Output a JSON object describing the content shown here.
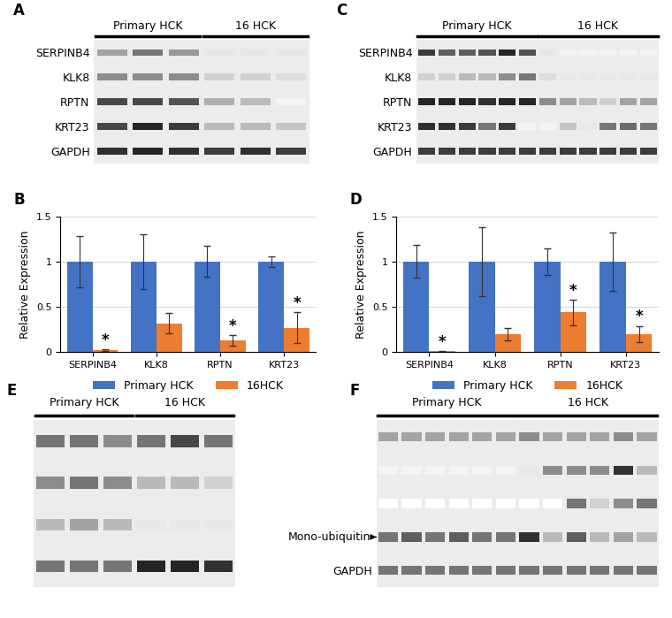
{
  "blots": [
    {
      "panel": "A",
      "groups": [
        {
          "label": "Primary HCK",
          "lanes": 3
        },
        {
          "label": "16 HCK",
          "lanes": 3
        }
      ],
      "rows": [
        {
          "label": "SERPINB4",
          "intensity": [
            0.4,
            0.6,
            0.45,
            0.1,
            0.1,
            0.1
          ]
        },
        {
          "label": "KLK8",
          "intensity": [
            0.5,
            0.5,
            0.5,
            0.2,
            0.2,
            0.15
          ]
        },
        {
          "label": "RPTN",
          "intensity": [
            0.8,
            0.8,
            0.75,
            0.35,
            0.3,
            0.05
          ]
        },
        {
          "label": "KRT23",
          "intensity": [
            0.8,
            0.95,
            0.85,
            0.3,
            0.3,
            0.25
          ]
        },
        {
          "label": "GAPDH",
          "intensity": [
            0.9,
            0.95,
            0.9,
            0.85,
            0.9,
            0.85
          ]
        }
      ]
    },
    {
      "panel": "C",
      "groups": [
        {
          "label": "Primary HCK",
          "lanes": 6
        },
        {
          "label": "16 HCK",
          "lanes": 6
        }
      ],
      "rows": [
        {
          "label": "SERPINB4",
          "intensity": [
            0.85,
            0.7,
            0.7,
            0.75,
            0.95,
            0.75,
            0.1,
            0.05,
            0.05,
            0.05,
            0.05,
            0.05
          ]
        },
        {
          "label": "KLK8",
          "intensity": [
            0.2,
            0.2,
            0.3,
            0.3,
            0.5,
            0.6,
            0.15,
            0.1,
            0.1,
            0.1,
            0.1,
            0.1
          ]
        },
        {
          "label": "RPTN",
          "intensity": [
            0.95,
            0.95,
            0.95,
            0.9,
            0.95,
            0.95,
            0.5,
            0.4,
            0.3,
            0.2,
            0.4,
            0.4
          ]
        },
        {
          "label": "KRT23",
          "intensity": [
            0.9,
            0.9,
            0.85,
            0.6,
            0.85,
            0.05,
            0.05,
            0.25,
            0.1,
            0.6,
            0.65,
            0.6
          ]
        },
        {
          "label": "GAPDH",
          "intensity": [
            0.85,
            0.85,
            0.85,
            0.85,
            0.85,
            0.85,
            0.85,
            0.85,
            0.85,
            0.85,
            0.85,
            0.85
          ]
        }
      ]
    },
    {
      "panel": "E",
      "groups": [
        {
          "label": "Primary HCK",
          "lanes": 3
        },
        {
          "label": "16 HCK",
          "lanes": 3
        }
      ],
      "rows": [
        {
          "intensity": [
            0.6,
            0.6,
            0.5,
            0.6,
            0.8,
            0.6
          ]
        },
        {
          "intensity": [
            0.5,
            0.6,
            0.5,
            0.3,
            0.3,
            0.2
          ]
        },
        {
          "intensity": [
            0.3,
            0.4,
            0.3,
            0.1,
            0.1,
            0.1
          ]
        },
        {
          "intensity": [
            0.6,
            0.6,
            0.6,
            0.95,
            0.95,
            0.9
          ]
        }
      ]
    },
    {
      "panel": "F",
      "groups": [
        {
          "label": "Primary HCK",
          "lanes": 6
        },
        {
          "label": "16 HCK",
          "lanes": 6
        }
      ],
      "rows": [
        {
          "intensity": [
            0.4,
            0.4,
            0.4,
            0.4,
            0.4,
            0.4,
            0.5,
            0.4,
            0.4,
            0.4,
            0.5,
            0.4
          ]
        },
        {
          "intensity": [
            0.05,
            0.05,
            0.05,
            0.05,
            0.05,
            0.05,
            0.1,
            0.5,
            0.5,
            0.5,
            0.9,
            0.3
          ]
        },
        {
          "intensity": [
            0.0,
            0.0,
            0.0,
            0.0,
            0.0,
            0.0,
            0.0,
            0.0,
            0.6,
            0.2,
            0.5,
            0.6
          ]
        },
        {
          "label": "Mono-ubiquitin",
          "pointer": true,
          "intensity": [
            0.6,
            0.7,
            0.6,
            0.7,
            0.6,
            0.6,
            0.9,
            0.3,
            0.7,
            0.3,
            0.4,
            0.3
          ]
        },
        {
          "label": "GAPDH",
          "intensity": [
            0.6,
            0.6,
            0.6,
            0.6,
            0.6,
            0.6,
            0.6,
            0.6,
            0.6,
            0.6,
            0.6,
            0.6
          ]
        }
      ]
    }
  ],
  "chart_data": [
    {
      "type": "bar",
      "panel": "B",
      "y_label": "Relative Expression",
      "categories": [
        "SERPINB4",
        "KLK8",
        "RPTN",
        "KRT23"
      ],
      "ylim": [
        0,
        1.5
      ],
      "yticks": [
        0,
        0.5,
        1,
        1.5
      ],
      "legend": "bottom",
      "series": [
        {
          "name": "Primary HCK",
          "color": "#4472c4",
          "values": [
            1,
            1,
            1,
            1
          ],
          "errors": [
            0.28,
            0.3,
            0.17,
            0.06
          ]
        },
        {
          "name": "16HCK",
          "color": "#ed7d31",
          "values": [
            0.02,
            0.32,
            0.13,
            0.27
          ],
          "errors": [
            0.01,
            0.11,
            0.06,
            0.17
          ],
          "significance": [
            "*",
            null,
            "*",
            "*"
          ]
        }
      ]
    },
    {
      "type": "bar",
      "panel": "D",
      "y_label": "Relative Expression",
      "categories": [
        "SERPINB4",
        "KLK8",
        "RPTN",
        "KRT23"
      ],
      "ylim": [
        0,
        1.5
      ],
      "yticks": [
        0,
        0.5,
        1,
        1.5
      ],
      "legend": "bottom",
      "series": [
        {
          "name": "Primary HCK",
          "color": "#4472c4",
          "values": [
            1,
            1,
            1,
            1
          ],
          "errors": [
            0.18,
            0.38,
            0.15,
            0.32
          ]
        },
        {
          "name": "16HCK",
          "color": "#ed7d31",
          "values": [
            0.01,
            0.2,
            0.44,
            0.2
          ],
          "errors": [
            0.005,
            0.07,
            0.14,
            0.09
          ],
          "significance": [
            "*",
            null,
            "*",
            "*"
          ]
        }
      ]
    }
  ]
}
